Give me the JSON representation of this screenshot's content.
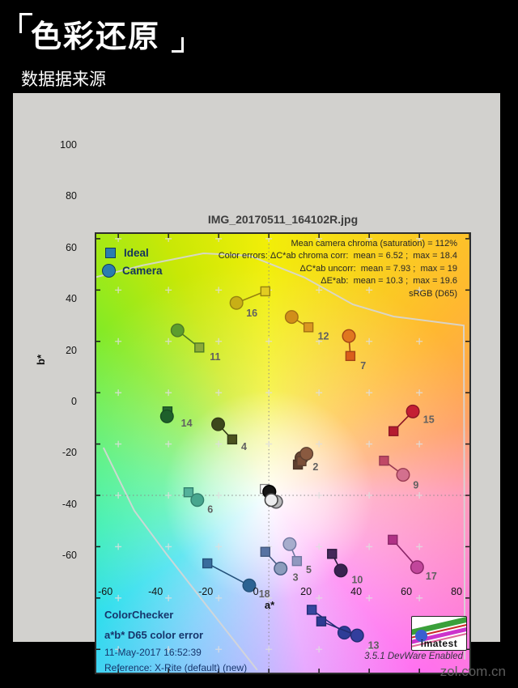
{
  "page": {
    "header_title": "色彩还原",
    "header_sub": "数据据来源",
    "watermark": "zol.com.cn"
  },
  "chart": {
    "title": "IMG_20170511_164102R.jpg",
    "legend": {
      "ideal_label": "Ideal",
      "camera_label": "Camera",
      "marker_fill": "#2a7cb0",
      "marker_stroke": "#123b5c"
    },
    "stats_lines": [
      "Mean camera chroma (saturation) = 112%",
      "Color errors: ΔC*ab chroma corr:  mean = 6.52 ;  max = 18.4",
      "ΔC*ab uncorr:  mean = 7.93 ;  max = 19",
      "ΔE*ab:  mean = 10.3 ;  max = 19.6",
      "sRGB (D65)"
    ],
    "corner_lines_bold": [
      "ColorChecker",
      "a*b* D65 color error"
    ],
    "corner_lines_regular": [
      "11-May-2017 16:52:39",
      "Reference: X-Rite (default) (new)"
    ],
    "version_text": "3.5.1  DevWare Enabled",
    "logo_text": "imatest",
    "xlabel": "a*",
    "ylabel": "b*"
  },
  "chart_data": {
    "type": "scatter",
    "title": "IMG_20170511_164102R.jpg",
    "xlabel": "a*",
    "ylabel": "b*",
    "xlim": [
      -69.4,
      80.6
    ],
    "ylim": [
      -69.7,
      102.5
    ],
    "xticks": [
      -60,
      -40,
      -20,
      0,
      20,
      40,
      60,
      80
    ],
    "yticks": [
      -60,
      -40,
      -20,
      0,
      20,
      40,
      60,
      80,
      100
    ],
    "grid_plus_x": [
      -60,
      -40,
      -20,
      0,
      20,
      40,
      60
    ],
    "grid_plus_y": [
      -60,
      -40,
      -20,
      0,
      20,
      40,
      60,
      80,
      100
    ],
    "legend_entries": [
      "Ideal (square)",
      "Camera (circle)"
    ],
    "points": [
      {
        "num": "16",
        "ideal": [
          -1.4,
          79.5
        ],
        "camera": [
          -12.9,
          75.0
        ],
        "ci": "#e2cc21",
        "cc": "#c8af16",
        "line": "#96830f",
        "label": [
          -9.0,
          71.0
        ]
      },
      {
        "num": "12",
        "ideal": [
          15.8,
          65.5
        ],
        "camera": [
          9.1,
          69.5
        ],
        "ci": "#db9722",
        "cc": "#d18e19",
        "line": "#a36f13",
        "label": [
          19.5,
          62.0
        ]
      },
      {
        "num": "7",
        "ideal": [
          32.5,
          54.3
        ],
        "camera": [
          31.9,
          62.1
        ],
        "ci": "#d95e1b",
        "cc": "#e0771f",
        "line": "#a34415",
        "label": [
          36.5,
          50.5
        ]
      },
      {
        "num": "11",
        "ideal": [
          -27.7,
          57.6
        ],
        "camera": [
          -36.4,
          64.3
        ],
        "ci": "#8ca939",
        "cc": "#5c9d2d",
        "line": "#4d7a26",
        "label": [
          -23.5,
          54.0
        ]
      },
      {
        "num": "14",
        "ideal": [
          -40.4,
          32.7
        ],
        "camera": [
          -40.6,
          30.8
        ],
        "ci": "#266a31",
        "cc": "#1e602b",
        "line": "#174d22",
        "label": [
          -35.0,
          28.0
        ]
      },
      {
        "num": "4",
        "ideal": [
          -14.6,
          21.8
        ],
        "camera": [
          -20.2,
          27.7
        ],
        "ci": "#4b5220",
        "cc": "#3d471c",
        "line": "#323a16",
        "label": [
          -11.0,
          19.0
        ]
      },
      {
        "num": "",
        "ideal": [
          11.6,
          12.0
        ],
        "camera": [
          13.0,
          14.6
        ],
        "ci": "#5e3f2e",
        "cc": "#6b4634",
        "line": "#4a3325",
        "label": null
      },
      {
        "num": "2",
        "ideal": [
          13.0,
          13.3
        ],
        "camera": [
          15.0,
          16.2
        ],
        "ci": "#7b4f38",
        "cc": "#8a5a40",
        "line": "#5d4030",
        "label": [
          17.5,
          11.0
        ]
      },
      {
        "num": "15",
        "ideal": [
          49.7,
          25.0
        ],
        "camera": [
          57.4,
          32.7
        ],
        "ci": "#b51b30",
        "cc": "#c41f34",
        "line": "#8c1525",
        "label": [
          61.5,
          29.5
        ]
      },
      {
        "num": "9",
        "ideal": [
          45.9,
          13.5
        ],
        "camera": [
          53.5,
          8.0
        ],
        "ci": "#c04966",
        "cc": "#d3708e",
        "line": "#993a52",
        "label": [
          57.5,
          4.0
        ]
      },
      {
        "num": "6",
        "ideal": [
          -32.0,
          1.2
        ],
        "camera": [
          -28.5,
          -1.8
        ],
        "ci": "#54b29b",
        "cc": "#47a68e",
        "line": "#31806d",
        "label": [
          -24.5,
          -5.5
        ]
      },
      {
        "num": "18",
        "ideal": [
          -24.5,
          -26.5
        ],
        "camera": [
          -7.8,
          -35.1
        ],
        "ci": "#396d9d",
        "cc": "#2c6393",
        "line": "#24517a",
        "label": [
          -4.0,
          -38.5
        ]
      },
      {
        "num": "3",
        "ideal": [
          -1.4,
          -22.0
        ],
        "camera": [
          4.7,
          -28.5
        ],
        "ci": "#5873a2",
        "cc": "#8c9cbc",
        "line": "#44597f",
        "label": [
          9.5,
          -32.0
        ]
      },
      {
        "num": "5",
        "ideal": [
          11.2,
          -25.6
        ],
        "camera": [
          8.3,
          -19.0
        ],
        "ci": "#9098bf",
        "cc": "#a6adcc",
        "line": "#6f77a0",
        "label": [
          14.8,
          -29.0
        ]
      },
      {
        "num": "10",
        "ideal": [
          25.2,
          -22.8
        ],
        "camera": [
          28.7,
          -29.3
        ],
        "ci": "#45285a",
        "cc": "#392250",
        "line": "#2b1a3e",
        "label": [
          33.0,
          -33.0
        ]
      },
      {
        "num": "17",
        "ideal": [
          49.4,
          -17.3
        ],
        "camera": [
          59.1,
          -28.0
        ],
        "ci": "#b03186",
        "cc": "#c1469b",
        "line": "#8a2668",
        "label": [
          62.5,
          -31.5
        ]
      },
      {
        "num": "",
        "ideal": [
          17.1,
          -44.6
        ],
        "camera": [
          30.1,
          -53.5
        ],
        "ci": "#35479e",
        "cc": "#2e3d97",
        "line": "#232e78",
        "label": null
      },
      {
        "num": "13",
        "ideal": [
          20.9,
          -49.1
        ],
        "camera": [
          35.2,
          -54.6
        ],
        "ci": "#2d3b92",
        "cc": "#333e9d",
        "line": "#222c70",
        "label": [
          39.5,
          -58.5
        ]
      }
    ],
    "neutral_markers": [
      {
        "shape": "square",
        "pos": [
          -1.6,
          2.5
        ],
        "fill": "#ffffff",
        "stroke": "#808080"
      },
      {
        "shape": "circle",
        "pos": [
          2.9,
          -2.5
        ],
        "fill": "#b9b9bb",
        "stroke": "#58585c"
      },
      {
        "shape": "circle",
        "pos": [
          0.2,
          1.4
        ],
        "fill": "#161616",
        "stroke": "#000000"
      },
      {
        "shape": "circle",
        "pos": [
          1.0,
          -1.8
        ],
        "fill": "#ececee",
        "stroke": "#444444"
      }
    ],
    "gamut_boundary": [
      [
        [
          -69.4,
          84.9
        ],
        [
          -50.4,
          89.6
        ],
        [
          -26.1,
          94.3
        ],
        [
          -7.7,
          93.4
        ],
        [
          14.2,
          84.9
        ],
        [
          33.5,
          74.4
        ],
        [
          49.7,
          69.7
        ],
        [
          77.7,
          66.2
        ],
        [
          78.1,
          -64.0
        ]
      ],
      [
        [
          -65.9,
          18.6
        ],
        [
          -53.6,
          -6.0
        ],
        [
          -40.7,
          -23.0
        ],
        [
          -24.6,
          -43.2
        ],
        [
          -4.6,
          -68.1
        ]
      ]
    ],
    "zero_lines": true,
    "colors": {
      "grid_plus": "#dedede",
      "zero_line": "#8a8a8a",
      "tick": "#1a1a1a",
      "border": "#2e2e2e",
      "point_label": "#606060"
    }
  }
}
